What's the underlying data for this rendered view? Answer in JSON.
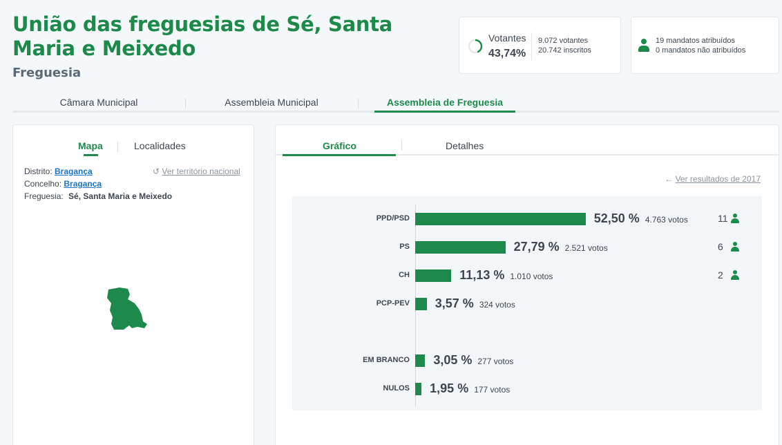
{
  "header": {
    "title": "União das freguesias de Sé, Santa Maria e Meixedo",
    "subtitle": "Freguesia"
  },
  "turnout": {
    "label": "Votantes",
    "percent": "43,74%",
    "percent_value": 43.74,
    "voters": "9.072 votantes",
    "registered": "20.742 inscritos"
  },
  "mandates": {
    "assigned": "19 mandatos atribuídos",
    "unassigned": "0 mandatos não atribuídos"
  },
  "top_tabs": [
    {
      "label": "Câmara Municipal",
      "active": false
    },
    {
      "label": "Assembleia Municipal",
      "active": false
    },
    {
      "label": "Assembleia de Freguesia",
      "active": true
    }
  ],
  "left": {
    "tabs": [
      {
        "label": "Mapa",
        "active": true
      },
      {
        "label": "Localidades",
        "active": false
      }
    ],
    "national_link": "Ver território nacional",
    "district_label": "Distrito:",
    "district_value": "Bragança",
    "council_label": "Concelho:",
    "council_value": "Bragança",
    "parish_label": "Freguesia:",
    "parish_value": "Sé, Santa Maria e Meixedo"
  },
  "right": {
    "tabs": [
      {
        "label": "Gráfico",
        "active": true
      },
      {
        "label": "Detalhes",
        "active": false
      }
    ],
    "prev_link": "Ver resultados de 2017"
  },
  "colors": {
    "accent": "#1d8a4c",
    "link": "#1a73c9"
  },
  "chart_data": {
    "type": "bar",
    "orientation": "horizontal",
    "categories": [
      "PPD/PSD",
      "PS",
      "CH",
      "PCP-PEV",
      "EM BRANCO",
      "NULOS"
    ],
    "values": [
      52.5,
      27.79,
      11.13,
      3.57,
      3.05,
      1.95
    ],
    "value_labels": [
      "52,50 %",
      "27,79 %",
      "11,13 %",
      "3,57 %",
      "3,05 %",
      "1,95 %"
    ],
    "votes": [
      "4.763 votos",
      "2.521 votos",
      "1.010 votos",
      "324 votos",
      "277 votos",
      "177 votos"
    ],
    "seats": [
      "11",
      "6",
      "2",
      "",
      "",
      ""
    ]
  }
}
